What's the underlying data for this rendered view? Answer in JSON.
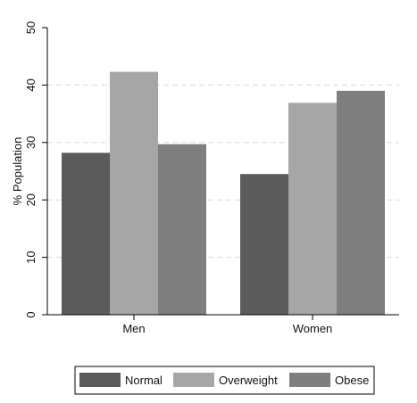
{
  "chart_data": {
    "type": "bar",
    "categories": [
      "Men",
      "Women"
    ],
    "series": [
      {
        "name": "Normal",
        "values": [
          28.2,
          24.5
        ],
        "color": "#5b5b5b"
      },
      {
        "name": "Overweight",
        "values": [
          42.3,
          36.9
        ],
        "color": "#a6a6a6"
      },
      {
        "name": "Obese",
        "values": [
          29.7,
          39.0
        ],
        "color": "#7f7f7f"
      }
    ],
    "title": "",
    "xlabel": "",
    "ylabel": "% Population",
    "ylim": [
      0,
      50
    ],
    "yticks": [
      0,
      10,
      20,
      30,
      40,
      50
    ],
    "grid": true,
    "legend_position": "bottom"
  }
}
